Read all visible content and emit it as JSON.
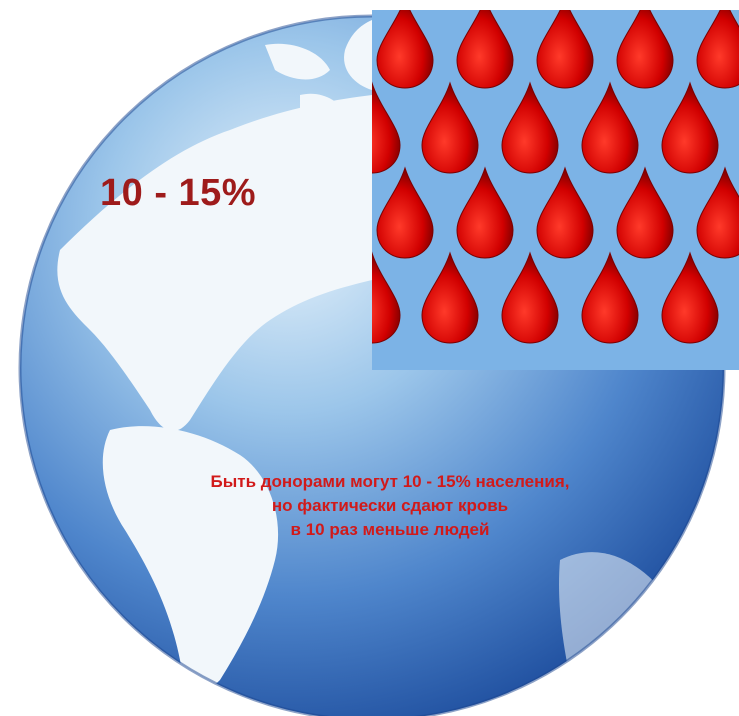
{
  "headline": "10 - 15%",
  "caption": [
    "Быть донорами могут 10 - 15% населения,",
    "но фактически сдают кровь",
    "в 10 раз меньше людей"
  ],
  "colors": {
    "ocean_light": "#9cc6ea",
    "ocean_dark": "#1f4f9f",
    "land": "#f2f7fb",
    "drop_panel_bg": "#7cb3e6",
    "drop": "#d10000",
    "headline_text": "#9e1b1b",
    "caption_text": "#d11a1a"
  },
  "icons": [
    "globe-icon",
    "blood-drop-icon"
  ]
}
